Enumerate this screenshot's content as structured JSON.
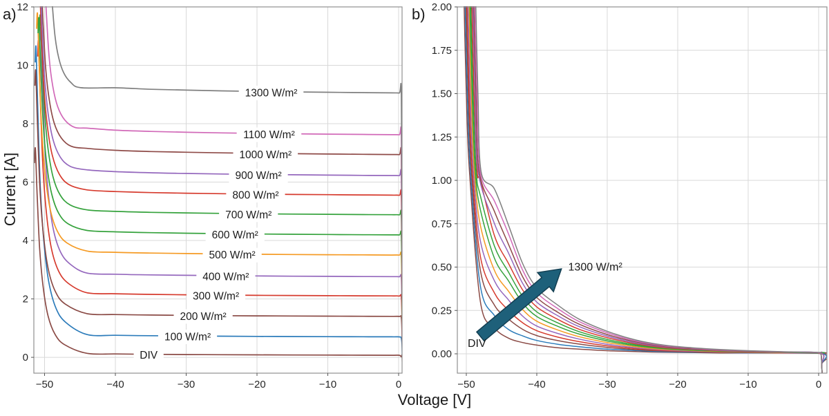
{
  "figure": {
    "xlabel": "Voltage [V]",
    "ylabel": "Current [A]",
    "background": "#ffffff",
    "grid_color": "#d8d8d8",
    "spine_color": "#8f8f8f",
    "tick_color": "#555555",
    "text_color": "#262626"
  },
  "chart_data": {
    "type": "line",
    "description": "Reverse-bias I-V curves of a PV module at irradiances from dark (DIV) to 1300 W/m2; panel a full scale, panel b zoom of 0-2 A",
    "panels": [
      {
        "id": "a",
        "letter": "a)",
        "xlim": [
          -52,
          1
        ],
        "ylim": [
          -0.54,
          12
        ],
        "xticks": [
          -50,
          -40,
          -30,
          -20,
          -10,
          0
        ],
        "xtick_labels": [
          "−50",
          "−40",
          "−30",
          "−20",
          "−10",
          "0"
        ],
        "yticks": [
          0,
          2,
          4,
          6,
          8,
          10,
          12
        ],
        "ytick_labels": [
          "0",
          "2",
          "4",
          "6",
          "8",
          "10",
          "12"
        ],
        "grid": true
      },
      {
        "id": "b",
        "letter": "b)",
        "xlim": [
          -51.3,
          1.2
        ],
        "ylim": [
          -0.11,
          2.0
        ],
        "xticks": [
          -50,
          -40,
          -30,
          -20,
          -10,
          0
        ],
        "xtick_labels": [
          "−50",
          "−40",
          "−30",
          "−20",
          "−10",
          "0"
        ],
        "yticks": [
          0,
          0.25,
          0.5,
          0.75,
          1,
          1.25,
          1.5,
          1.75,
          2
        ],
        "ytick_labels": [
          "0.00",
          "0.25",
          "0.50",
          "0.75",
          "1.00",
          "1.25",
          "1.50",
          "1.75",
          "2.00"
        ],
        "grid": true,
        "annotations": {
          "div_text": "DIV",
          "div_at": [
            -48.5,
            0.06
          ],
          "max_text": "1300 W/m²",
          "max_at": [
            -31.7,
            0.5
          ],
          "arrow": {
            "from": [
              -48.0,
              0.1
            ],
            "to": [
              -36.5,
              0.49
            ],
            "fill": "#1e607a",
            "stroke": "#143f52"
          }
        }
      }
    ],
    "b_value_grid_v": [
      -48,
      -46,
      -44,
      -42,
      -40,
      -37,
      -34,
      -30,
      -26,
      -22,
      -18,
      -14,
      -10,
      -5,
      0
    ],
    "series": [
      {
        "label": "DIV",
        "color": "#8a4a45",
        "plateau_A": 0.07,
        "peak_v": -51.3,
        "peak_A": 7.15,
        "label_v": -35.3,
        "b_cross": -50.3,
        "b": [
          0.3,
          0.15,
          0.09,
          0.065,
          0.05,
          0.035,
          0.027,
          0.018,
          0.013,
          0.009,
          0.007,
          0.005,
          0.004,
          0.003,
          0.002
        ]
      },
      {
        "label": "100 W/m²",
        "color": "#2b7bba",
        "plateau_A": 0.7,
        "peak_v": -51.2,
        "peak_A": 10.6,
        "label_v": -29.8,
        "b_cross": -50.16,
        "b": [
          0.39,
          0.22,
          0.14,
          0.103,
          0.077,
          0.055,
          0.041,
          0.027,
          0.019,
          0.012,
          0.009,
          0.007,
          0.005,
          0.004,
          0.003
        ]
      },
      {
        "label": "200 W/m²",
        "color": "#8a4a45",
        "plateau_A": 1.4,
        "peak_v": -51.25,
        "peak_A": 9.8,
        "label_v": -27.6,
        "b_cross": -50.02,
        "b": [
          0.48,
          0.28,
          0.2,
          0.141,
          0.105,
          0.076,
          0.056,
          0.037,
          0.024,
          0.016,
          0.012,
          0.008,
          0.006,
          0.005,
          0.003
        ]
      },
      {
        "label": "300 W/m²",
        "color": "#d63a2d",
        "plateau_A": 2.1,
        "peak_v": -50.85,
        "peak_A": 10.8,
        "label_v": -25.8,
        "b_cross": -49.89,
        "b": [
          0.56,
          0.35,
          0.25,
          0.179,
          0.133,
          0.096,
          0.07,
          0.046,
          0.03,
          0.019,
          0.014,
          0.01,
          0.008,
          0.005,
          0.004
        ]
      },
      {
        "label": "400 W/m²",
        "color": "#9467bd",
        "plateau_A": 2.76,
        "peak_v": -50.55,
        "peak_A": 11.25,
        "label_v": -24.4,
        "b_cross": -49.75,
        "b": [
          0.65,
          0.42,
          0.31,
          0.217,
          0.16,
          0.117,
          0.085,
          0.055,
          0.035,
          0.023,
          0.016,
          0.012,
          0.009,
          0.006,
          0.004
        ]
      },
      {
        "label": "500 W/m²",
        "color": "#f59a23",
        "plateau_A": 3.5,
        "peak_v": -51.0,
        "peak_A": 11.75,
        "label_v": -23.5,
        "b_cross": -49.61,
        "b": [
          0.74,
          0.48,
          0.36,
          0.255,
          0.188,
          0.137,
          0.099,
          0.065,
          0.041,
          0.026,
          0.019,
          0.013,
          0.01,
          0.007,
          0.005
        ]
      },
      {
        "label": "600 W/m²",
        "color": "#35a23c",
        "plateau_A": 4.19,
        "peak_v": -50.8,
        "peak_A": 11.6,
        "label_v": -23.1,
        "b_cross": -49.48,
        "b": [
          0.83,
          0.55,
          0.42,
          0.293,
          0.215,
          0.158,
          0.114,
          0.074,
          0.047,
          0.03,
          0.021,
          0.015,
          0.011,
          0.008,
          0.005
        ]
      },
      {
        "label": "700 W/m²",
        "color": "#35a23c",
        "plateau_A": 4.88,
        "peak_v": -50.6,
        "peak_A": 11.7,
        "label_v": -21.2,
        "b_cross": -49.34,
        "b": [
          0.91,
          0.62,
          0.47,
          0.33,
          0.242,
          0.178,
          0.128,
          0.083,
          0.052,
          0.033,
          0.023,
          0.017,
          0.012,
          0.008,
          0.006
        ]
      },
      {
        "label": "800 W/m²",
        "color": "#d63a2d",
        "plateau_A": 5.55,
        "peak_v": -50.7,
        "peak_A": 12.7,
        "label_v": -20.2,
        "b_cross": -49.2,
        "b": [
          1.0,
          0.68,
          0.52,
          0.368,
          0.27,
          0.198,
          0.142,
          0.093,
          0.058,
          0.036,
          0.026,
          0.018,
          0.013,
          0.009,
          0.006
        ]
      },
      {
        "label": "900 W/m²",
        "color": "#9467bd",
        "plateau_A": 6.22,
        "peak_v": -50.6,
        "peak_A": 12.7,
        "label_v": -19.8,
        "b_cross": -49.06,
        "b": [
          1.09,
          0.75,
          0.58,
          0.406,
          0.298,
          0.219,
          0.157,
          0.102,
          0.063,
          0.04,
          0.028,
          0.02,
          0.015,
          0.01,
          0.007
        ]
      },
      {
        "label": "1000 W/m²",
        "color": "#8e4a47",
        "plateau_A": 6.94,
        "peak_v": -50.45,
        "peak_A": 12.7,
        "label_v": -18.8,
        "b_cross": -48.93,
        "b": [
          1.17,
          0.82,
          0.63,
          0.444,
          0.325,
          0.239,
          0.171,
          0.111,
          0.069,
          0.043,
          0.03,
          0.022,
          0.016,
          0.011,
          0.007
        ]
      },
      {
        "label": "1100 W/m²",
        "color": "#d169b8",
        "plateau_A": 7.62,
        "peak_v": -49.95,
        "peak_A": 12.7,
        "label_v": -18.3,
        "b_cross": -48.79,
        "b": [
          1.26,
          0.88,
          0.69,
          0.482,
          0.353,
          0.26,
          0.186,
          0.121,
          0.074,
          0.047,
          0.033,
          0.023,
          0.017,
          0.011,
          0.007
        ]
      },
      {
        "label": "1300 W/m²",
        "color": "#7f7f7f",
        "plateau_A": 9.05,
        "peak_v": -49.1,
        "peak_A": 12.7,
        "label_v": -18.0,
        "b_cross": -48.65,
        "b": [
          1.35,
          0.95,
          0.74,
          0.52,
          0.38,
          0.28,
          0.2,
          0.13,
          0.08,
          0.05,
          0.035,
          0.025,
          0.018,
          0.012,
          0.008
        ]
      }
    ]
  }
}
